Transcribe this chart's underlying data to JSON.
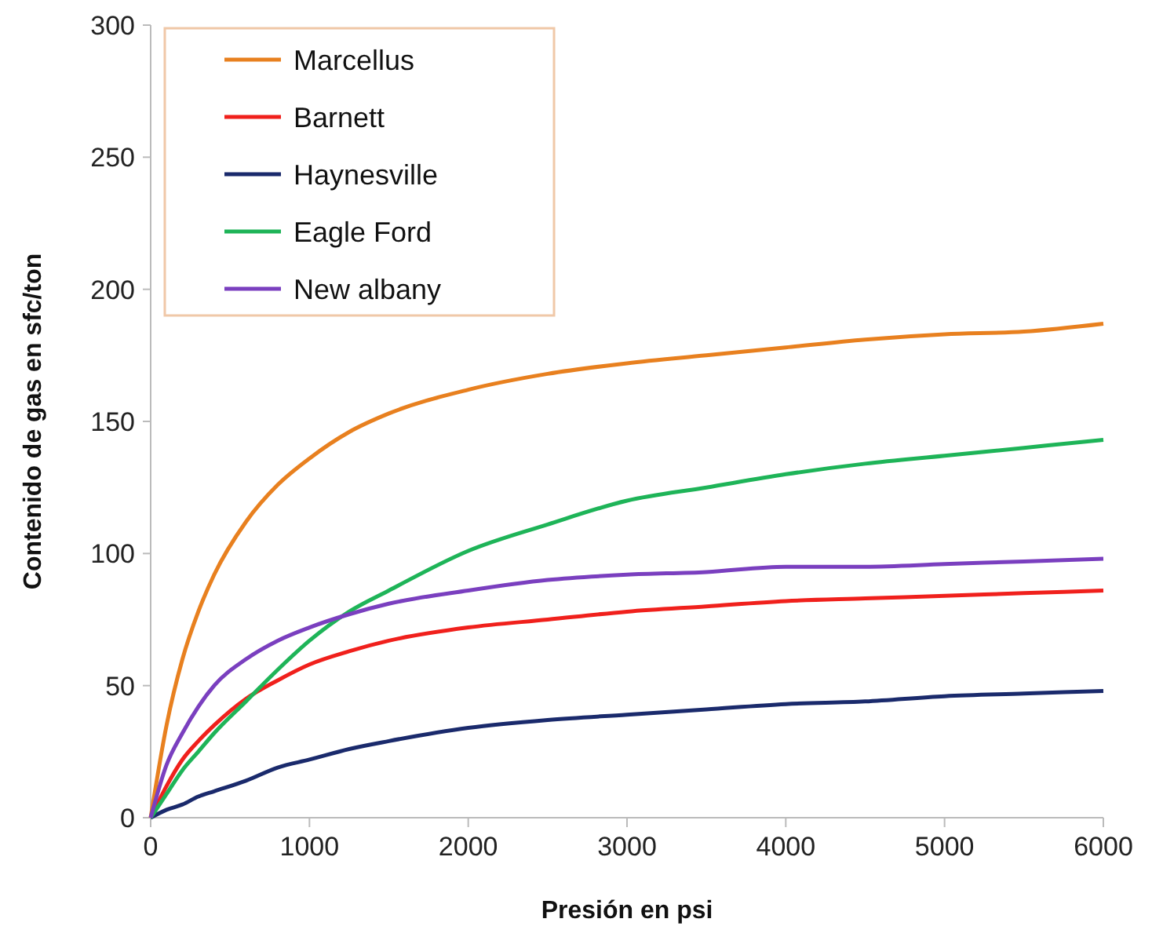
{
  "chart_data": {
    "type": "line",
    "xlabel": "Presión en psi",
    "ylabel": "Contenido de gas en sfc/ton",
    "xlim": [
      0,
      6000
    ],
    "ylim": [
      0,
      300
    ],
    "xticks": [
      0,
      1000,
      2000,
      3000,
      4000,
      5000,
      6000
    ],
    "yticks": [
      0,
      50,
      100,
      150,
      200,
      250,
      300
    ],
    "grid": false,
    "legend": "top left",
    "marker": "none",
    "line_style": "solid",
    "x": [
      0,
      100,
      200,
      300,
      400,
      600,
      800,
      1000,
      1250,
      1500,
      2000,
      2500,
      3000,
      3500,
      4000,
      4500,
      5000,
      5500,
      6000
    ],
    "series": [
      {
        "name": "Marcellus",
        "color": "#e8801f",
        "values": [
          0,
          35,
          60,
          78,
          92,
          112,
          126,
          136,
          146,
          153,
          162,
          168,
          172,
          175,
          178,
          181,
          183,
          184,
          187
        ]
      },
      {
        "name": "Barnett",
        "color": "#f0201c",
        "values": [
          0,
          12,
          22,
          29,
          35,
          45,
          52,
          58,
          63,
          67,
          72,
          75,
          78,
          80,
          82,
          83,
          84,
          85,
          86
        ]
      },
      {
        "name": "Haynesville",
        "color": "#1a2a6c",
        "values": [
          0,
          3,
          5,
          8,
          10,
          14,
          19,
          22,
          26,
          29,
          34,
          37,
          39,
          41,
          43,
          44,
          46,
          47,
          48
        ]
      },
      {
        "name": "Eagle Ford",
        "color": "#1eb458",
        "values": [
          0,
          9,
          18,
          25,
          32,
          44,
          56,
          67,
          78,
          86,
          101,
          111,
          120,
          125,
          130,
          134,
          137,
          140,
          143
        ]
      },
      {
        "name": "New albany",
        "color": "#7a3fbf",
        "values": [
          0,
          20,
          32,
          42,
          50,
          60,
          67,
          72,
          77,
          81,
          86,
          90,
          92,
          93,
          95,
          95,
          96,
          97,
          98
        ]
      }
    ]
  }
}
